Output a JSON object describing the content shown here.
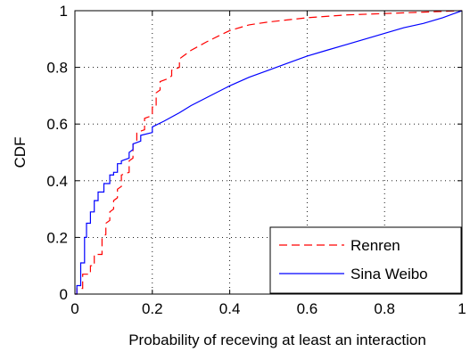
{
  "chart_data": {
    "type": "line",
    "title": "",
    "xlabel": "Probability of receving at least an interaction",
    "ylabel": "CDF",
    "xlim": [
      0,
      1
    ],
    "ylim": [
      0,
      1
    ],
    "xticks": [
      "0",
      "0.2",
      "0.4",
      "0.6",
      "0.8",
      "1"
    ],
    "yticks": [
      "0",
      "0.2",
      "0.4",
      "0.6",
      "0.8",
      "1"
    ],
    "xtick_values": [
      0,
      0.2,
      0.4,
      0.6,
      0.8,
      1
    ],
    "ytick_values": [
      0,
      0.2,
      0.4,
      0.6,
      0.8,
      1
    ],
    "grid": true,
    "legend_position": "bottom-right",
    "series": [
      {
        "name": "Renren",
        "color": "#ff0000",
        "style": "dashed",
        "points": [
          [
            0,
            0
          ],
          [
            0.005,
            0
          ],
          [
            0.005,
            0.02
          ],
          [
            0.02,
            0.02
          ],
          [
            0.02,
            0.07
          ],
          [
            0.04,
            0.07
          ],
          [
            0.04,
            0.1
          ],
          [
            0.05,
            0.1
          ],
          [
            0.05,
            0.14
          ],
          [
            0.07,
            0.14
          ],
          [
            0.07,
            0.2
          ],
          [
            0.08,
            0.21
          ],
          [
            0.08,
            0.25
          ],
          [
            0.09,
            0.26
          ],
          [
            0.09,
            0.29
          ],
          [
            0.1,
            0.3
          ],
          [
            0.1,
            0.33
          ],
          [
            0.11,
            0.34
          ],
          [
            0.11,
            0.37
          ],
          [
            0.12,
            0.38
          ],
          [
            0.12,
            0.42
          ],
          [
            0.14,
            0.43
          ],
          [
            0.14,
            0.47
          ],
          [
            0.15,
            0.48
          ],
          [
            0.15,
            0.53
          ],
          [
            0.16,
            0.54
          ],
          [
            0.16,
            0.57
          ],
          [
            0.18,
            0.58
          ],
          [
            0.18,
            0.62
          ],
          [
            0.2,
            0.63
          ],
          [
            0.2,
            0.66
          ],
          [
            0.21,
            0.66
          ],
          [
            0.21,
            0.71
          ],
          [
            0.22,
            0.72
          ],
          [
            0.22,
            0.75
          ],
          [
            0.24,
            0.76
          ],
          [
            0.25,
            0.77
          ],
          [
            0.25,
            0.79
          ],
          [
            0.27,
            0.8
          ],
          [
            0.27,
            0.83
          ],
          [
            0.28,
            0.84
          ],
          [
            0.3,
            0.86
          ],
          [
            0.34,
            0.89
          ],
          [
            0.37,
            0.91
          ],
          [
            0.4,
            0.93
          ],
          [
            0.45,
            0.95
          ],
          [
            0.5,
            0.96
          ],
          [
            0.6,
            0.975
          ],
          [
            0.7,
            0.985
          ],
          [
            0.8,
            0.99
          ],
          [
            0.9,
            0.995
          ],
          [
            1.0,
            1.0
          ]
        ]
      },
      {
        "name": "Sina Weibo",
        "color": "#0000ff",
        "style": "solid",
        "points": [
          [
            0,
            0
          ],
          [
            0.005,
            0
          ],
          [
            0.005,
            0.03
          ],
          [
            0.015,
            0.03
          ],
          [
            0.015,
            0.11
          ],
          [
            0.025,
            0.11
          ],
          [
            0.025,
            0.2
          ],
          [
            0.03,
            0.2
          ],
          [
            0.03,
            0.25
          ],
          [
            0.04,
            0.25
          ],
          [
            0.04,
            0.29
          ],
          [
            0.05,
            0.29
          ],
          [
            0.05,
            0.33
          ],
          [
            0.06,
            0.33
          ],
          [
            0.06,
            0.36
          ],
          [
            0.075,
            0.36
          ],
          [
            0.075,
            0.39
          ],
          [
            0.09,
            0.39
          ],
          [
            0.09,
            0.42
          ],
          [
            0.1,
            0.42
          ],
          [
            0.1,
            0.43
          ],
          [
            0.11,
            0.43
          ],
          [
            0.11,
            0.46
          ],
          [
            0.12,
            0.46
          ],
          [
            0.12,
            0.47
          ],
          [
            0.14,
            0.48
          ],
          [
            0.14,
            0.5
          ],
          [
            0.15,
            0.51
          ],
          [
            0.15,
            0.53
          ],
          [
            0.17,
            0.54
          ],
          [
            0.17,
            0.56
          ],
          [
            0.2,
            0.57
          ],
          [
            0.2,
            0.59
          ],
          [
            0.23,
            0.61
          ],
          [
            0.27,
            0.64
          ],
          [
            0.3,
            0.665
          ],
          [
            0.35,
            0.7
          ],
          [
            0.4,
            0.735
          ],
          [
            0.45,
            0.765
          ],
          [
            0.5,
            0.79
          ],
          [
            0.55,
            0.815
          ],
          [
            0.6,
            0.84
          ],
          [
            0.65,
            0.86
          ],
          [
            0.7,
            0.88
          ],
          [
            0.75,
            0.9
          ],
          [
            0.8,
            0.92
          ],
          [
            0.85,
            0.94
          ],
          [
            0.9,
            0.955
          ],
          [
            0.95,
            0.975
          ],
          [
            1.0,
            1.0
          ]
        ]
      }
    ]
  }
}
